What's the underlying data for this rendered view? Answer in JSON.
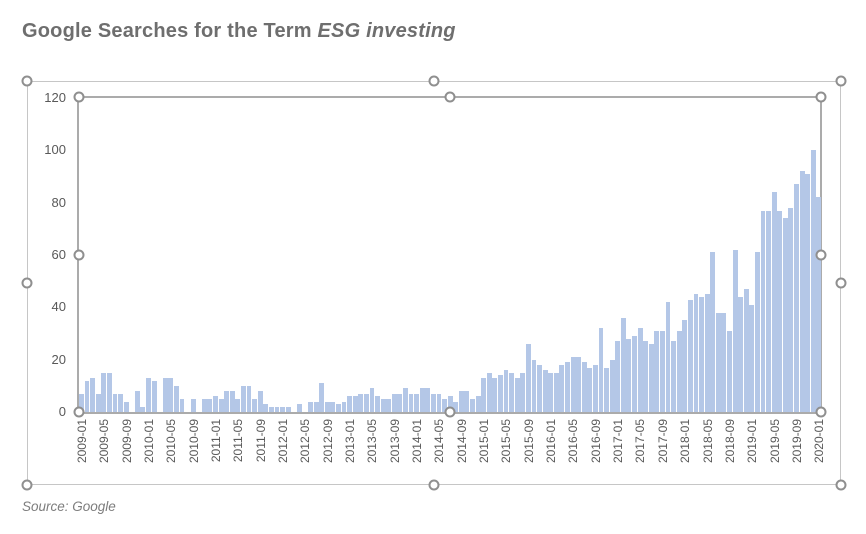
{
  "header": {
    "title_prefix": "Google Searches for the Term ",
    "title_italic": "ESG investing"
  },
  "footer": {
    "source": "Source: Google"
  },
  "colors": {
    "bar": "#b4c7e7",
    "title_text": "#6e6e6e",
    "axis_text": "#595959",
    "source_text": "#7d7d7d",
    "plot_border": "#ababab",
    "chart_border": "#c6c6c6",
    "handle_border": "#8f8f8f",
    "handle_fill": "#ffffff"
  },
  "chart_data": {
    "type": "bar",
    "title": "Google Searches for the Term ESG investing",
    "xlabel": "",
    "ylabel": "",
    "x_unit": "month",
    "x_first": "2009-01",
    "x_last": "2020-01",
    "x_tick_labels": [
      "2009-01",
      "2009-05",
      "2009-09",
      "2010-01",
      "2010-05",
      "2010-09",
      "2011-01",
      "2011-05",
      "2011-09",
      "2012-01",
      "2012-05",
      "2012-09",
      "2013-01",
      "2013-05",
      "2013-09",
      "2014-01",
      "2014-05",
      "2014-09",
      "2015-01",
      "2015-05",
      "2015-09",
      "2016-01",
      "2016-05",
      "2016-09",
      "2017-01",
      "2017-05",
      "2017-09",
      "2018-01",
      "2018-05",
      "2018-09",
      "2019-01",
      "2019-05",
      "2019-09",
      "2020-01"
    ],
    "y_ticks": [
      0,
      20,
      40,
      60,
      80,
      100,
      120
    ],
    "ylim": [
      0,
      120
    ],
    "grid": false,
    "legend": false,
    "values": [
      7,
      12,
      13,
      7,
      15,
      15,
      7,
      7,
      4,
      0,
      8,
      2,
      13,
      12,
      0,
      13,
      13,
      10,
      5,
      0,
      5,
      0,
      5,
      5,
      6,
      5,
      8,
      8,
      5,
      10,
      10,
      5,
      8,
      3,
      2,
      2,
      2,
      2,
      0,
      3,
      0,
      4,
      4,
      11,
      4,
      4,
      3,
      4,
      6,
      6,
      7,
      7,
      9,
      6,
      5,
      5,
      7,
      7,
      9,
      7,
      7,
      9,
      9,
      7,
      7,
      5,
      6,
      4,
      8,
      8,
      5,
      6,
      13,
      15,
      13,
      14,
      16,
      15,
      13,
      15,
      26,
      20,
      18,
      16,
      15,
      15,
      18,
      19,
      21,
      21,
      19,
      17,
      18,
      32,
      17,
      20,
      27,
      36,
      28,
      29,
      32,
      27,
      26,
      31,
      31,
      42,
      27,
      31,
      35,
      43,
      45,
      44,
      45,
      61,
      38,
      38,
      31,
      62,
      44,
      47,
      41,
      61,
      77,
      77,
      84,
      77,
      74,
      78,
      87,
      92,
      91,
      100,
      82
    ],
    "source": "Source: Google"
  }
}
